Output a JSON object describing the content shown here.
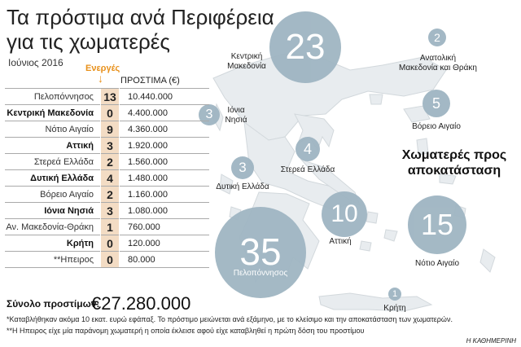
{
  "title": "Τα πρόστιμα ανά Περιφέρεια\nγια τις χωματερές",
  "date": "Ιούνιος 2016",
  "table": {
    "header_active": "Ενεργές",
    "header_fine": "ΠΡΟΣΤΙΜΑ (€)",
    "rows": [
      {
        "region": "Πελοπόννησος",
        "active": "13",
        "fine": "10.440.000",
        "bold": false
      },
      {
        "region": "Κεντρική Μακεδονία",
        "active": "0",
        "fine": "4.400.000",
        "bold": true
      },
      {
        "region": "Νότιο Αιγαίο",
        "active": "9",
        "fine": "4.360.000",
        "bold": false
      },
      {
        "region": "Αττική",
        "active": "3",
        "fine": "1.920.000",
        "bold": true
      },
      {
        "region": "Στερεά Ελλάδα",
        "active": "2",
        "fine": "1.560.000",
        "bold": false
      },
      {
        "region": "Δυτική Ελλάδα",
        "active": "4",
        "fine": "1.480.000",
        "bold": true
      },
      {
        "region": "Βόρειο Αιγαίο",
        "active": "2",
        "fine": "1.160.000",
        "bold": false
      },
      {
        "region": "Ιόνια Νησιά",
        "active": "3",
        "fine": "1.080.000",
        "bold": true
      },
      {
        "region": "Αν. Μακεδονία-Θράκη",
        "active": "1",
        "fine": "760.000",
        "bold": false
      },
      {
        "region": "Κρήτη",
        "active": "0",
        "fine": "120.000",
        "bold": true
      },
      {
        "region": "**Ηπειρος",
        "active": "0",
        "fine": "80.000",
        "bold": false
      }
    ]
  },
  "total_label": "Σύνολο προστίμων:",
  "total_value": "€27.280.000",
  "notes": [
    "*Καταβλήθηκαν ακόμα 10 εκατ. ευρώ εφάπαξ. Το πρόστιμο μειώνεται ανά εξάμηνο, με το κλείσιμο και την αποκατάσταση των χωματερών.",
    "**Η Ηπειρος είχε μία παράνομη χωματερή η οποία έκλεισε αφού είχε καταβληθεί η πρώτη δόση του προστίμου"
  ],
  "brand": "Η ΚΑΘΗΜΕΡΙΝΗ",
  "map_title": "Χωματερές προς\nαποκατάσταση",
  "chart_data": {
    "type": "bubble-map",
    "title": "Χωματερές προς αποκατάσταση",
    "bubbles": [
      {
        "region": "Κεντρική\nΜακεδονία",
        "value": 23
      },
      {
        "region": "Ανατολική\nΜακεδονία και Θράκη",
        "value": 2
      },
      {
        "region": "Ιόνια\nΝησιά",
        "value": 3
      },
      {
        "region": "Βόρειο Αιγαίο",
        "value": 5
      },
      {
        "region": "Στερεά Ελλάδα",
        "value": 4
      },
      {
        "region": "Δυτική Ελλάδα",
        "value": 3
      },
      {
        "region": "Αττική",
        "value": 10
      },
      {
        "region": "Νότιο Αιγαίο",
        "value": 15
      },
      {
        "region": "Πελοπόννησος",
        "value": 35
      },
      {
        "region": "Κρήτη",
        "value": 1
      }
    ]
  },
  "colors": {
    "bubble": "#9fb5c2",
    "land": "#e8ecef",
    "accent": "#e8901a",
    "count_bg": "#f3dcc4"
  }
}
